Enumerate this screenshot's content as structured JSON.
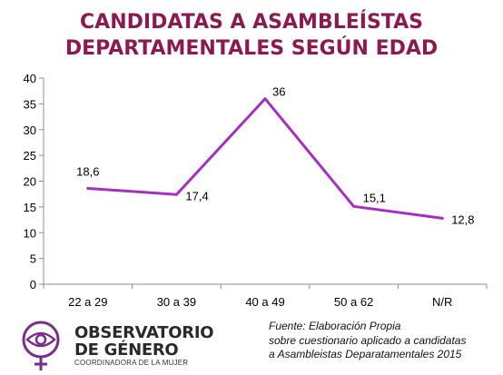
{
  "chart_data": {
    "type": "line",
    "title": [
      "CANDIDATAS A ASAMBLEÍSTAS",
      "DEPARTAMENTALES  SEGÚN EDAD"
    ],
    "categories": [
      "22 a 29",
      "30 a 39",
      "40 a 49",
      "50 a 62",
      "N/R"
    ],
    "series": [
      {
        "values": [
          18.6,
          17.4,
          36,
          15.1,
          12.8
        ],
        "labels": [
          "18,6",
          "17,4",
          "36",
          "15,1",
          "12,8"
        ]
      }
    ],
    "yticks": [
      "0",
      "5",
      "10",
      "15",
      "20",
      "25",
      "30",
      "35",
      "40"
    ],
    "ylim": [
      0,
      40
    ],
    "grid": false,
    "line_color": "#A62FC0"
  },
  "logo": {
    "line1": "OBSERVATORIO",
    "line2": "DE GÉNERO",
    "sub": "COORDINADORA DE LA MUJER",
    "accent": "#7B2D8E"
  },
  "source": [
    "Fuente: Elaboración Propia",
    "sobre cuestionario aplicado a candidatas",
    "a Asambleistas Deparatamentales 2015"
  ]
}
